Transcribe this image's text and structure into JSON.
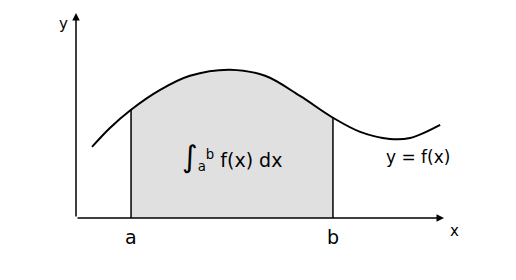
{
  "chart_data": {
    "type": "area",
    "x_label": "x",
    "y_label": "y",
    "x": [
      0.5,
      1.06,
      1.72,
      2.63,
      3.56,
      4.81,
      5.91,
      7.0,
      8.03,
      8.88,
      9.81,
      10.44,
      11.38
    ],
    "values": [
      2.22,
      2.81,
      3.38,
      4.0,
      4.44,
      4.63,
      4.44,
      3.81,
      3.13,
      2.69,
      2.47,
      2.5,
      2.91
    ],
    "series_label": "y = f(x)",
    "color": "#000000",
    "region": {
      "from": {
        "value": 1.72,
        "label": "a"
      },
      "to": {
        "value": 8.03,
        "label": "b"
      },
      "label": {
        "symbol": "∫",
        "lower": "a",
        "upper": "b",
        "integrand": "f(x) dx"
      },
      "color": "#e0e0e0"
    },
    "xlim": [
      0,
      11.5
    ],
    "ylim": [
      0,
      6.4
    ],
    "tick_labels": false,
    "grid": false
  }
}
